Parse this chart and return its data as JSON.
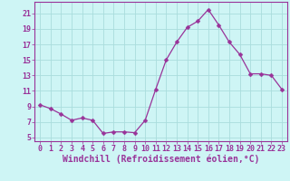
{
  "x": [
    0,
    1,
    2,
    3,
    4,
    5,
    6,
    7,
    8,
    9,
    10,
    11,
    12,
    13,
    14,
    15,
    16,
    17,
    18,
    19,
    20,
    21,
    22,
    23
  ],
  "y": [
    9.2,
    8.7,
    8.0,
    7.2,
    7.5,
    7.2,
    5.5,
    5.7,
    5.7,
    5.6,
    7.2,
    11.2,
    15.0,
    17.3,
    19.2,
    20.0,
    21.5,
    19.5,
    17.3,
    15.7,
    13.2,
    13.2,
    13.0,
    11.2
  ],
  "line_color": "#993399",
  "marker": "D",
  "marker_size": 2.5,
  "bg_color": "#cef5f5",
  "grid_color": "#aadddd",
  "xlabel": "Windchill (Refroidissement éolien,°C)",
  "ylabel_ticks": [
    5,
    7,
    9,
    11,
    13,
    15,
    17,
    19,
    21
  ],
  "xlim": [
    -0.5,
    23.5
  ],
  "ylim": [
    4.5,
    22.5
  ],
  "xlabel_fontsize": 7,
  "tick_fontsize": 6,
  "label_color": "#993399",
  "spine_color": "#993399"
}
